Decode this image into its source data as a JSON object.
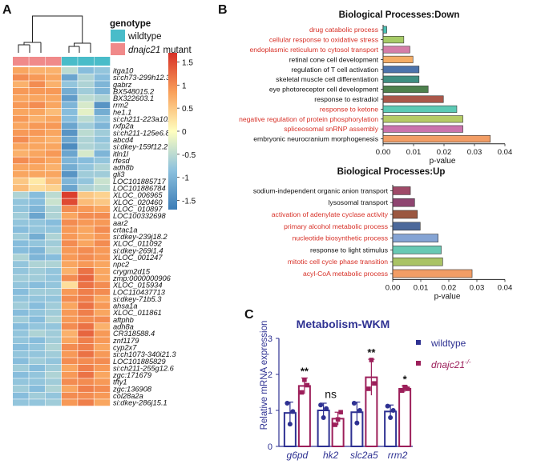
{
  "panels": {
    "a": "A",
    "b": "B",
    "c": "C"
  },
  "chart_data": [
    {
      "type": "heatmap",
      "panel": "A",
      "legend_title": "genotype",
      "groups": [
        {
          "name": "wildtype",
          "color": "#49BCC9"
        },
        {
          "name": "dnajc21 mutant",
          "color": "#F08A8A"
        }
      ],
      "colorbar": {
        "ticks": [
          1.5,
          1,
          0.5,
          0,
          -0.5,
          -1,
          -1.5
        ],
        "range": [
          -1.7,
          1.7
        ]
      },
      "rows": [
        "itga10",
        "si:ch73-299h12.3",
        "gabrz",
        "BX548015.2",
        "BX322603.1",
        "rrm2",
        "he1.1",
        "si:ch211-223a10.1",
        "rxfp2a",
        "si:ch211-125e6.8",
        "abcd4",
        "si:dkey-159f12.2",
        "itln1l",
        "rfesd",
        "adh8b",
        "gli3",
        "LOC101885717",
        "LOC101886784",
        "XLOC_006965",
        "XLOC_020460",
        "XLOC_010897",
        "LOC100332698",
        "aar2",
        "crtac1a",
        "si:dkey-239j18.2",
        "XLOC_011092",
        "si:dkey-269i1.4",
        "XLOC_001247",
        "npc2",
        "crygm2d15",
        "zmp:0000000906",
        "XLOC_015934",
        "LOC110437713",
        "si:dkey-71b5.3",
        "ahsa1a",
        "XLOC_011861",
        "aftphb",
        "adh8a",
        "CR318588.4",
        "znf1179",
        "cyp2x7",
        "si:ch1073-340i21.3",
        "LOC101885829",
        "si:ch211-255g12.6",
        "zgc:171679",
        "tfty1",
        "zgc:136908",
        "col28a2a",
        "si:dkey-286j15.1"
      ],
      "values": [
        [
          0.8,
          0.7,
          0.7,
          -0.5,
          -0.9,
          -0.8
        ],
        [
          1.0,
          0.9,
          0.8,
          -1.2,
          -0.6,
          -0.9
        ],
        [
          0.7,
          1.0,
          0.7,
          -0.8,
          -0.6,
          -1.0
        ],
        [
          0.9,
          0.9,
          0.9,
          -1.1,
          -0.7,
          -1.0
        ],
        [
          0.8,
          0.8,
          0.8,
          -1.3,
          -0.5,
          -0.6
        ],
        [
          0.9,
          1.0,
          0.8,
          -1.0,
          -0.3,
          -1.4
        ],
        [
          0.8,
          0.8,
          0.6,
          -0.9,
          -0.2,
          -1.1
        ],
        [
          0.9,
          0.7,
          0.8,
          -0.9,
          -0.5,
          -0.8
        ],
        [
          0.8,
          0.9,
          0.9,
          -1.2,
          -0.7,
          -1.0
        ],
        [
          0.9,
          0.9,
          0.8,
          -1.4,
          -0.5,
          -0.7
        ],
        [
          1.0,
          0.8,
          0.7,
          -1.2,
          -0.6,
          -0.8
        ],
        [
          0.8,
          0.8,
          0.8,
          -1.5,
          -0.6,
          -0.7
        ],
        [
          0.7,
          0.8,
          0.9,
          -1.2,
          -0.3,
          -1.0
        ],
        [
          1.0,
          0.9,
          0.8,
          -1.0,
          -0.9,
          -0.8
        ],
        [
          0.8,
          0.8,
          0.7,
          -1.1,
          -0.8,
          -0.6
        ],
        [
          0.8,
          0.8,
          0.8,
          -1.4,
          -0.7,
          -0.7
        ],
        [
          0.5,
          0.2,
          0.6,
          -1.0,
          -0.8,
          -0.4
        ],
        [
          0.6,
          0.3,
          0.4,
          -1.2,
          -0.6,
          -0.5
        ],
        [
          -0.6,
          -0.9,
          -0.5,
          1.6,
          0.5,
          0.4
        ],
        [
          -0.8,
          -0.9,
          -0.4,
          1.5,
          0.6,
          0.5
        ],
        [
          -0.8,
          -1.0,
          -0.6,
          1.0,
          0.9,
          0.8
        ],
        [
          -0.7,
          -1.2,
          -0.6,
          0.8,
          1.0,
          1.0
        ],
        [
          -0.8,
          -0.8,
          -0.9,
          1.0,
          0.9,
          0.9
        ],
        [
          -0.9,
          -0.8,
          -0.8,
          0.9,
          0.8,
          1.0
        ],
        [
          -0.7,
          -1.1,
          -0.6,
          0.9,
          0.8,
          0.9
        ],
        [
          -0.9,
          -0.8,
          -0.7,
          1.0,
          0.8,
          1.0
        ],
        [
          -0.9,
          -1.0,
          -0.6,
          0.9,
          1.0,
          0.9
        ],
        [
          -0.6,
          -1.0,
          -0.9,
          0.9,
          1.0,
          0.9
        ],
        [
          -0.8,
          -0.6,
          -0.6,
          0.8,
          0.9,
          0.8
        ],
        [
          -0.8,
          -0.7,
          -0.8,
          0.7,
          1.2,
          0.8
        ],
        [
          -0.7,
          -0.7,
          -0.8,
          1.0,
          1.3,
          0.8
        ],
        [
          -0.8,
          -0.9,
          -0.8,
          0.3,
          1.2,
          1.0
        ],
        [
          -0.9,
          -0.7,
          -0.7,
          0.9,
          1.1,
          1.0
        ],
        [
          -0.8,
          -0.8,
          -0.8,
          1.0,
          1.1,
          0.8
        ],
        [
          -0.7,
          -0.9,
          -0.7,
          0.8,
          1.2,
          0.9
        ],
        [
          -0.9,
          -0.8,
          -0.7,
          0.9,
          1.1,
          0.8
        ],
        [
          -0.7,
          -0.9,
          -0.6,
          0.9,
          1.0,
          1.0
        ],
        [
          -0.9,
          -0.8,
          -0.8,
          1.0,
          1.2,
          0.7
        ],
        [
          -0.8,
          -0.6,
          -0.7,
          0.7,
          1.3,
          0.9
        ],
        [
          -0.8,
          -0.9,
          -0.7,
          0.8,
          1.1,
          0.9
        ],
        [
          -0.9,
          -0.8,
          -0.6,
          1.0,
          1.1,
          0.8
        ],
        [
          -0.8,
          -0.8,
          -0.7,
          0.9,
          1.2,
          0.9
        ],
        [
          -0.9,
          -0.7,
          -0.8,
          1.0,
          1.0,
          1.0
        ],
        [
          -0.7,
          -0.9,
          -0.7,
          0.8,
          1.1,
          0.9
        ],
        [
          -0.9,
          -0.8,
          -0.6,
          0.9,
          1.2,
          0.8
        ],
        [
          -0.8,
          -0.8,
          -0.7,
          1.0,
          1.0,
          0.9
        ],
        [
          -0.7,
          -0.9,
          -0.6,
          0.8,
          1.1,
          1.0
        ],
        [
          -0.9,
          -0.7,
          -0.8,
          1.0,
          1.0,
          0.9
        ],
        [
          -0.8,
          -0.8,
          -0.7,
          0.9,
          1.1,
          0.8
        ]
      ]
    },
    {
      "type": "bar",
      "panel": "B",
      "title": "Biological Processes:Down",
      "xlabel": "p-value",
      "xlim": [
        0,
        0.04
      ],
      "xticks": [
        "0.00",
        "0.01",
        "0.02",
        "0.03",
        "0.04"
      ],
      "highlight_color": "#D73027",
      "categories": [
        "drug catabolic process",
        "cellular response to oxidative stress",
        "endoplasmic reticulum to cytosol transport",
        "retinal cone cell development",
        "regulation of T cell activation",
        "skeletal muscle cell differentiation",
        "eye photoreceptor cell development",
        "response to estradiol",
        "response to ketone",
        "negative regulation of protein phosphorylation",
        "spliceosomal snRNP assembly",
        "embryonic neurocranium morphogenesis"
      ],
      "values": [
        0.0012,
        0.0068,
        0.0088,
        0.0098,
        0.0118,
        0.0118,
        0.0148,
        0.0198,
        0.0242,
        0.0262,
        0.0262,
        0.0352
      ],
      "colors": [
        "#2BB5A6",
        "#97C24B",
        "#CC6699",
        "#F29D4A",
        "#2D5A9E",
        "#1D7A6B",
        "#2E6B2E",
        "#9B3A2A",
        "#3FC1A8",
        "#A8C24B",
        "#C15A9E",
        "#F08C4A"
      ],
      "highlighted": [
        true,
        true,
        true,
        false,
        false,
        false,
        false,
        false,
        true,
        true,
        true,
        false
      ]
    },
    {
      "type": "bar",
      "panel": "B",
      "title": "Biological Processes:Up",
      "xlabel": "p-value",
      "xlim": [
        0,
        0.04
      ],
      "xticks": [
        "0.00",
        "0.01",
        "0.02",
        "0.03",
        "0.04"
      ],
      "categories": [
        "sodium-independent organic anion transport",
        "lysosomal transport",
        "activation of adenylate cyclase activity",
        "primary alcohol metabolic process",
        "nucleotide biosynthetic process",
        "response to light stimulus",
        "mitotic cell cycle phase transition",
        "acyl-CoA metabolic process"
      ],
      "values": [
        0.0063,
        0.0078,
        0.0088,
        0.0098,
        0.0162,
        0.0173,
        0.0178,
        0.0283
      ],
      "colors": [
        "#8E2A4E",
        "#7A2458",
        "#8A3A1E",
        "#2D4F8A",
        "#7094CC",
        "#4DBFA7",
        "#9AB84A",
        "#F08C4A"
      ],
      "highlighted": [
        false,
        false,
        true,
        true,
        true,
        false,
        true,
        true
      ]
    },
    {
      "type": "bar",
      "panel": "C",
      "title": "Metabolism-WKM",
      "ylabel": "Relative mRNA expression",
      "ylim": [
        0,
        3
      ],
      "yticks": [
        "0",
        "1",
        "2",
        "3"
      ],
      "categories": [
        "g6pd",
        "hk2",
        "slc2a5",
        "rrm2"
      ],
      "series": [
        {
          "name": "wildtype",
          "color": "#2E3192",
          "values": [
            0.93,
            1.0,
            0.95,
            0.97
          ],
          "errors": [
            0.3,
            0.2,
            0.28,
            0.18
          ],
          "points": [
            [
              1.2,
              0.62,
              0.97
            ],
            [
              1.15,
              0.8,
              1.05
            ],
            [
              1.2,
              0.65,
              1.0
            ],
            [
              1.12,
              0.8,
              1.0
            ]
          ]
        },
        {
          "name": "dnajc21",
          "name_superscript": "-/-",
          "color": "#9C1F5A",
          "values": [
            1.68,
            0.77,
            1.92,
            1.6
          ],
          "errors": [
            0.22,
            0.18,
            0.5,
            0.08
          ],
          "points": [
            [
              1.5,
              1.85,
              1.7
            ],
            [
              0.6,
              0.75,
              0.95
            ],
            [
              1.6,
              2.4,
              1.75
            ],
            [
              1.55,
              1.65,
              1.6
            ]
          ]
        }
      ],
      "significance": [
        "**",
        "ns",
        "**",
        "*"
      ]
    }
  ]
}
